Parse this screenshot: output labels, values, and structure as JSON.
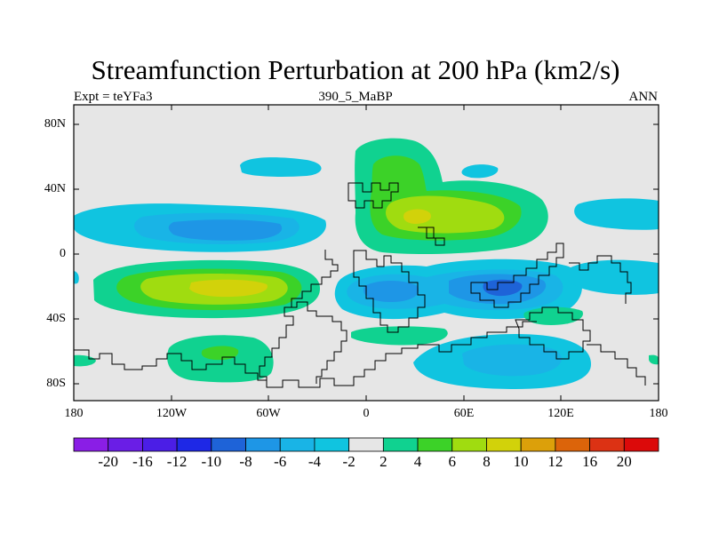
{
  "title": "Streamfunction Perturbation at 200 hPa (km2/s)",
  "subtitle_left": "Expt = teYFa3",
  "subtitle_center": "390_5_MaBP",
  "subtitle_right": "ANN",
  "y_ticks": [
    "80N",
    "40N",
    "0",
    "40S",
    "80S"
  ],
  "x_ticks": [
    "180",
    "120W",
    "60W",
    "0",
    "60E",
    "120E",
    "180"
  ],
  "colorbar": {
    "labels": [
      "-20",
      "-16",
      "-12",
      "-10",
      "-8",
      "-6",
      "-4",
      "-2",
      "2",
      "4",
      "6",
      "8",
      "10",
      "12",
      "16",
      "20"
    ],
    "colors": [
      "#8a1ee6",
      "#6a1ee6",
      "#4b1ee6",
      "#1e28e6",
      "#1e63d8",
      "#1e96e6",
      "#19b4e6",
      "#10c4e0",
      "#e6e6e6",
      "#10d290",
      "#3cd228",
      "#a0dc10",
      "#d2d20a",
      "#dca00a",
      "#dc640a",
      "#dc3214",
      "#dc0a0a"
    ]
  },
  "map_colors": {
    "background": "#e6e6e6",
    "c_neg2": "#10c4e0",
    "c_neg4": "#19b4e6",
    "c_neg6": "#1e96e6",
    "c_neg8": "#1e63d8",
    "c_pos2": "#10d290",
    "c_pos4": "#3cd228",
    "c_pos6": "#a0dc10",
    "c_pos8": "#d2d20a"
  }
}
